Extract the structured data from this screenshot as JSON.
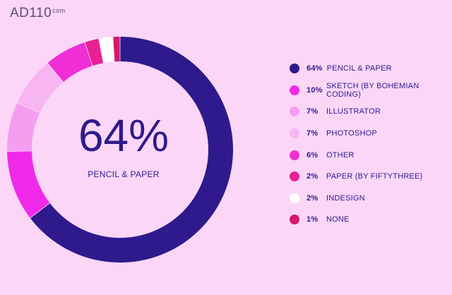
{
  "logo": {
    "main": "AD110",
    "sup": "com"
  },
  "center": {
    "value": "64%",
    "label": "PENCIL & PAPER"
  },
  "chart_data": {
    "type": "pie",
    "donut": true,
    "legend_position": "right",
    "categories": [
      "PENCIL & PAPER",
      "SKETCH (BY BOHEMIAN CODING)",
      "ILLUSTRATOR",
      "PHOTOSHOP",
      "OTHER",
      "PAPER (BY FIFTYTHREE)",
      "INDESIGN",
      "NONE"
    ],
    "values": [
      64,
      10,
      7,
      7,
      6,
      2,
      2,
      1
    ],
    "value_labels": [
      "64%",
      "10%",
      "7%",
      "7%",
      "6%",
      "2%",
      "2%",
      "1%"
    ],
    "colors": [
      "#2e1a8c",
      "#f02ae8",
      "#f59df0",
      "#f7b5f2",
      "#ef2ed6",
      "#ea1f94",
      "#ffffff",
      "#d4186a"
    ]
  }
}
